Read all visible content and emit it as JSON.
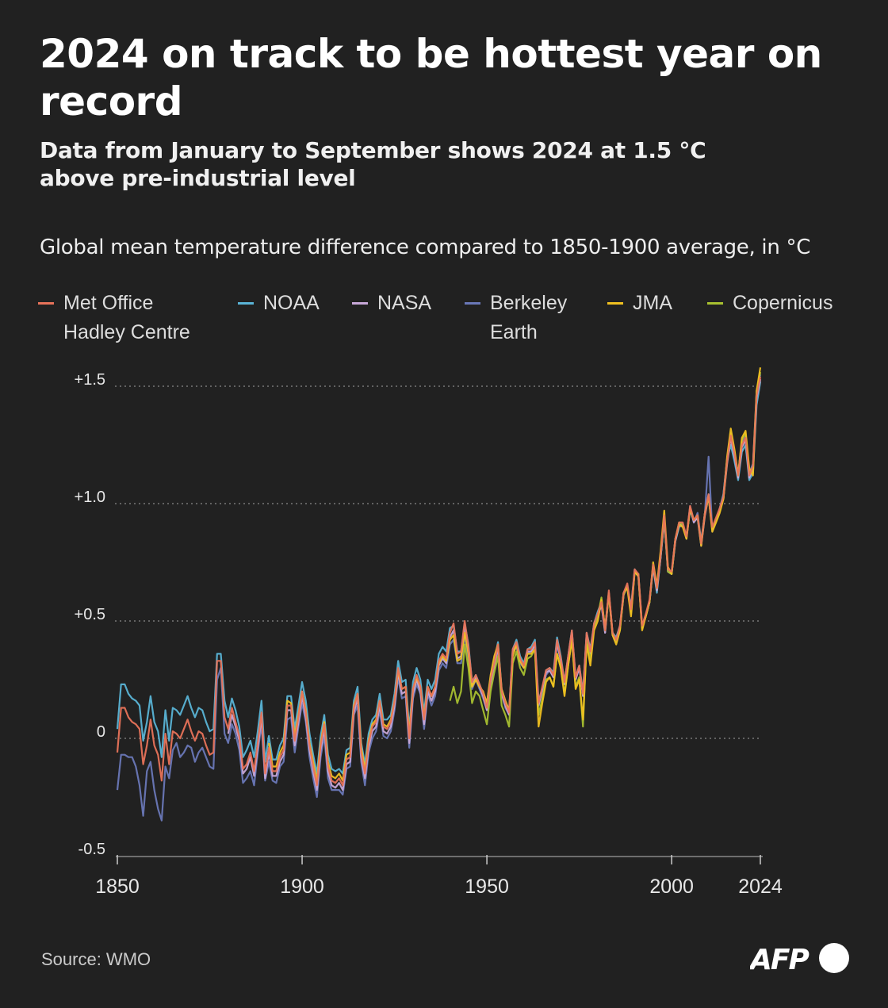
{
  "header": {
    "title": "2024 on track to be hottest year on record",
    "subtitle": "Data from January to September shows 2024 at 1.5 °C above pre-industrial level"
  },
  "footer": {
    "source": "Source: WMO",
    "logo": "AFP"
  },
  "chart_data": {
    "type": "line",
    "title": "2024 on track to be hottest year on record",
    "subtitle": "Data from January to September shows 2024 at 1.5 °C above pre-industrial level",
    "ylabel": "Global mean temperature difference compared to 1850-1900 average, in °C",
    "xlabel": "",
    "xlim": [
      1850,
      2024
    ],
    "ylim": [
      -0.5,
      1.5
    ],
    "x_ticks": [
      "1850",
      "1900",
      "1950",
      "2000",
      "2024"
    ],
    "y_ticks": [
      "-0.5",
      "0",
      "+0.5",
      "+1.0",
      "+1.5"
    ],
    "grid": "horizontal dotted",
    "legend_placement": "top",
    "background": "#212121",
    "series": [
      {
        "name": "Met Office\nHadley Centre",
        "color": "#e8735a",
        "start_year": 1850,
        "values": [
          -0.06,
          0.13,
          0.13,
          0.09,
          0.07,
          0.06,
          0.04,
          -0.11,
          -0.03,
          0.08,
          -0.03,
          -0.07,
          -0.18,
          0.02,
          -0.11,
          0.03,
          0.02,
          0.0,
          0.04,
          0.08,
          0.03,
          -0.01,
          0.03,
          0.02,
          -0.03,
          -0.07,
          -0.06,
          0.33,
          0.33,
          0.09,
          0.04,
          0.13,
          0.07,
          0.01,
          -0.13,
          -0.11,
          -0.06,
          -0.14,
          -0.02,
          0.11,
          -0.15,
          -0.04,
          -0.14,
          -0.14,
          -0.08,
          -0.05,
          0.14,
          0.14,
          -0.01,
          0.09,
          0.2,
          0.11,
          -0.03,
          -0.12,
          -0.2,
          -0.03,
          0.06,
          -0.12,
          -0.18,
          -0.19,
          -0.17,
          -0.2,
          -0.09,
          -0.08,
          0.13,
          0.19,
          -0.06,
          -0.15,
          -0.02,
          0.05,
          0.07,
          0.16,
          0.05,
          0.04,
          0.07,
          0.16,
          0.3,
          0.21,
          0.22,
          0.0,
          0.21,
          0.27,
          0.22,
          0.08,
          0.22,
          0.18,
          0.22,
          0.33,
          0.36,
          0.34,
          0.45,
          0.49,
          0.36,
          0.37,
          0.5,
          0.39,
          0.24,
          0.27,
          0.23,
          0.19,
          0.13,
          0.25,
          0.32,
          0.4,
          0.2,
          0.15,
          0.11,
          0.38,
          0.41,
          0.34,
          0.31,
          0.38,
          0.38,
          0.41,
          0.15,
          0.22,
          0.29,
          0.3,
          0.27,
          0.42,
          0.34,
          0.24,
          0.35,
          0.46,
          0.26,
          0.31,
          0.19,
          0.45,
          0.37,
          0.49,
          0.53,
          0.58,
          0.46,
          0.63,
          0.45,
          0.42,
          0.48,
          0.62,
          0.66,
          0.55,
          0.72,
          0.7,
          0.48,
          0.53,
          0.59,
          0.74,
          0.64,
          0.78,
          0.95,
          0.72,
          0.71,
          0.85,
          0.92,
          0.92,
          0.86,
          0.99,
          0.93,
          0.95,
          0.83,
          0.96,
          1.04,
          0.9,
          0.94,
          0.98,
          1.03,
          1.18,
          1.29,
          1.21,
          1.12,
          1.25,
          1.28,
          1.12,
          1.16,
          1.46,
          1.54
        ]
      },
      {
        "name": "NOAA",
        "color": "#5ab4d6",
        "start_year": 1850,
        "values": [
          0.04,
          0.23,
          0.23,
          0.19,
          0.17,
          0.16,
          0.14,
          -0.01,
          0.07,
          0.18,
          0.07,
          0.03,
          -0.08,
          0.12,
          -0.01,
          0.13,
          0.12,
          0.1,
          0.14,
          0.18,
          0.13,
          0.09,
          0.13,
          0.12,
          0.07,
          0.03,
          0.04,
          0.36,
          0.36,
          0.16,
          0.09,
          0.17,
          0.12,
          0.05,
          -0.08,
          -0.05,
          -0.01,
          -0.08,
          0.03,
          0.16,
          -0.1,
          0.01,
          -0.09,
          -0.09,
          -0.03,
          0.0,
          0.18,
          0.18,
          0.04,
          0.14,
          0.24,
          0.16,
          0.02,
          -0.07,
          -0.15,
          0.01,
          0.1,
          -0.07,
          -0.13,
          -0.14,
          -0.13,
          -0.15,
          -0.05,
          -0.04,
          0.16,
          0.22,
          -0.02,
          -0.11,
          0.02,
          0.08,
          0.1,
          0.19,
          0.08,
          0.08,
          0.1,
          0.19,
          0.33,
          0.24,
          0.25,
          0.04,
          0.24,
          0.3,
          0.25,
          0.11,
          0.25,
          0.21,
          0.25,
          0.36,
          0.39,
          0.37,
          0.47,
          0.48,
          0.37,
          0.37,
          0.49,
          0.4,
          0.24,
          0.27,
          0.23,
          0.19,
          0.15,
          0.26,
          0.33,
          0.41,
          0.21,
          0.16,
          0.12,
          0.38,
          0.42,
          0.35,
          0.32,
          0.38,
          0.39,
          0.42,
          0.16,
          0.21,
          0.29,
          0.3,
          0.28,
          0.43,
          0.35,
          0.24,
          0.35,
          0.46,
          0.26,
          0.31,
          0.2,
          0.45,
          0.38,
          0.49,
          0.54,
          0.58,
          0.47,
          0.62,
          0.45,
          0.43,
          0.48,
          0.62,
          0.65,
          0.56,
          0.72,
          0.69,
          0.47,
          0.52,
          0.58,
          0.73,
          0.62,
          0.77,
          0.93,
          0.71,
          0.7,
          0.84,
          0.9,
          0.91,
          0.86,
          0.97,
          0.93,
          0.94,
          0.84,
          0.96,
          1.04,
          0.89,
          0.93,
          0.97,
          1.04,
          1.19,
          1.25,
          1.18,
          1.1,
          1.22,
          1.25,
          1.1,
          1.13,
          1.42,
          1.52
        ]
      },
      {
        "name": "NASA",
        "color": "#c8a8d8",
        "start_year": 1880,
        "values": [
          0.02,
          0.1,
          0.05,
          -0.01,
          -0.15,
          -0.13,
          -0.08,
          -0.16,
          -0.04,
          0.09,
          -0.17,
          -0.06,
          -0.16,
          -0.16,
          -0.1,
          -0.07,
          0.12,
          0.12,
          -0.03,
          0.07,
          0.18,
          0.09,
          -0.05,
          -0.14,
          -0.22,
          -0.05,
          0.04,
          -0.14,
          -0.2,
          -0.21,
          -0.19,
          -0.22,
          -0.11,
          -0.1,
          0.11,
          0.17,
          -0.08,
          -0.17,
          -0.04,
          0.03,
          0.05,
          0.14,
          0.03,
          0.02,
          0.05,
          0.14,
          0.28,
          0.19,
          0.2,
          -0.02,
          0.19,
          0.25,
          0.2,
          0.06,
          0.2,
          0.16,
          0.2,
          0.31,
          0.34,
          0.32,
          0.43,
          0.46,
          0.34,
          0.35,
          0.47,
          0.37,
          0.22,
          0.26,
          0.22,
          0.18,
          0.12,
          0.24,
          0.31,
          0.39,
          0.19,
          0.14,
          0.1,
          0.37,
          0.4,
          0.33,
          0.3,
          0.37,
          0.37,
          0.4,
          0.14,
          0.21,
          0.28,
          0.29,
          0.26,
          0.41,
          0.33,
          0.23,
          0.34,
          0.45,
          0.25,
          0.3,
          0.18,
          0.44,
          0.36,
          0.48,
          0.52,
          0.57,
          0.45,
          0.62,
          0.44,
          0.41,
          0.47,
          0.61,
          0.65,
          0.54,
          0.71,
          0.69,
          0.47,
          0.52,
          0.58,
          0.73,
          0.63,
          0.77,
          0.94,
          0.71,
          0.7,
          0.84,
          0.91,
          0.91,
          0.85,
          0.98,
          0.92,
          0.94,
          0.82,
          0.95,
          1.03,
          0.89,
          0.93,
          0.97,
          1.02,
          1.17,
          1.28,
          1.2,
          1.11,
          1.24,
          1.27,
          1.11,
          1.15,
          1.45,
          1.53
        ]
      },
      {
        "name": "Berkeley\nEarth",
        "color": "#6a78b8",
        "start_year": 1850,
        "values": [
          -0.22,
          -0.07,
          -0.07,
          -0.08,
          -0.08,
          -0.12,
          -0.2,
          -0.33,
          -0.14,
          -0.1,
          -0.22,
          -0.3,
          -0.35,
          -0.12,
          -0.17,
          -0.05,
          -0.02,
          -0.08,
          -0.06,
          -0.03,
          -0.04,
          -0.1,
          -0.06,
          -0.04,
          -0.08,
          -0.12,
          -0.13,
          0.25,
          0.3,
          0.02,
          -0.02,
          0.06,
          0.02,
          -0.05,
          -0.19,
          -0.17,
          -0.14,
          -0.2,
          -0.06,
          0.06,
          -0.18,
          -0.1,
          -0.18,
          -0.19,
          -0.12,
          -0.1,
          0.08,
          0.09,
          -0.06,
          0.05,
          0.15,
          0.07,
          -0.08,
          -0.17,
          -0.25,
          -0.08,
          0.01,
          -0.17,
          -0.22,
          -0.22,
          -0.22,
          -0.24,
          -0.13,
          -0.12,
          0.1,
          0.14,
          -0.1,
          -0.2,
          -0.06,
          0.0,
          0.03,
          0.12,
          0.01,
          0.0,
          0.03,
          0.12,
          0.26,
          0.17,
          0.18,
          -0.04,
          0.17,
          0.23,
          0.19,
          0.04,
          0.19,
          0.14,
          0.18,
          0.29,
          0.32,
          0.3,
          0.4,
          0.42,
          0.32,
          0.32,
          0.44,
          0.33,
          0.21,
          0.25,
          0.21,
          0.17,
          0.12,
          0.23,
          0.3,
          0.38,
          0.19,
          0.13,
          0.1,
          0.36,
          0.39,
          0.32,
          0.3,
          0.36,
          0.37,
          0.39,
          0.14,
          0.2,
          0.27,
          0.29,
          0.26,
          0.4,
          0.33,
          0.23,
          0.34,
          0.45,
          0.25,
          0.3,
          0.19,
          0.44,
          0.36,
          0.48,
          0.52,
          0.57,
          0.45,
          0.62,
          0.45,
          0.42,
          0.47,
          0.61,
          0.65,
          0.55,
          0.71,
          0.7,
          0.48,
          0.52,
          0.58,
          0.74,
          0.63,
          0.77,
          0.93,
          0.72,
          0.71,
          0.85,
          0.91,
          0.91,
          0.86,
          0.99,
          0.92,
          0.96,
          0.84,
          0.96,
          1.2,
          0.88,
          0.93,
          0.98,
          1.04,
          1.19,
          1.3,
          1.21,
          1.13,
          1.26,
          1.29,
          1.13,
          1.17,
          1.48,
          1.55
        ]
      },
      {
        "name": "JMA",
        "color": "#f0c020",
        "start_year": 1891,
        "values": [
          -0.02,
          -0.12,
          -0.12,
          -0.06,
          -0.03,
          0.16,
          0.15,
          0.01,
          0.1,
          0.2,
          0.12,
          -0.02,
          -0.1,
          -0.18,
          -0.02,
          0.07,
          -0.1,
          -0.16,
          -0.17,
          -0.15,
          -0.18,
          -0.07,
          -0.06,
          0.14,
          0.19,
          -0.04,
          -0.13,
          -0.01,
          0.06,
          0.08,
          0.16,
          0.06,
          0.05,
          0.08,
          0.16,
          0.29,
          0.21,
          0.22,
          0.02,
          0.21,
          0.26,
          0.22,
          0.09,
          0.22,
          0.18,
          0.22,
          0.32,
          0.35,
          0.33,
          0.42,
          0.44,
          0.33,
          0.34,
          0.45,
          0.36,
          0.22,
          0.25,
          0.22,
          0.2,
          0.15,
          0.27,
          0.35,
          0.4,
          0.21,
          0.16,
          0.12,
          0.35,
          0.4,
          0.33,
          0.3,
          0.36,
          0.36,
          0.38,
          0.05,
          0.15,
          0.24,
          0.26,
          0.22,
          0.36,
          0.3,
          0.18,
          0.31,
          0.42,
          0.21,
          0.25,
          0.08,
          0.4,
          0.31,
          0.46,
          0.5,
          0.59,
          0.47,
          0.62,
          0.44,
          0.4,
          0.46,
          0.62,
          0.64,
          0.52,
          0.71,
          0.69,
          0.46,
          0.52,
          0.58,
          0.75,
          0.65,
          0.8,
          0.97,
          0.73,
          0.7,
          0.85,
          0.91,
          0.9,
          0.85,
          0.98,
          0.93,
          0.95,
          0.82,
          0.96,
          1.03,
          0.88,
          0.92,
          0.96,
          1.02,
          1.2,
          1.32,
          1.23,
          1.12,
          1.28,
          1.31,
          1.15,
          1.12,
          1.48,
          1.58
        ]
      },
      {
        "name": "Copernicus",
        "color": "#a8c030",
        "start_year": 1940,
        "values": [
          0.16,
          0.22,
          0.15,
          0.2,
          0.4,
          0.3,
          0.15,
          0.2,
          0.18,
          0.12,
          0.06,
          0.2,
          0.28,
          0.35,
          0.14,
          0.1,
          0.05,
          0.32,
          0.37,
          0.3,
          0.27,
          0.34,
          0.35,
          0.38,
          0.1,
          0.17,
          0.25,
          0.26,
          0.22,
          0.36,
          0.3,
          0.19,
          0.31,
          0.42,
          0.22,
          0.26,
          0.05,
          0.42,
          0.33,
          0.48,
          0.52,
          0.6,
          0.46,
          0.61,
          0.45,
          0.41,
          0.46,
          0.61,
          0.65,
          0.53,
          0.71,
          0.7,
          0.47,
          0.52,
          0.58,
          0.74,
          0.64,
          0.78,
          0.94,
          0.71,
          0.7,
          0.85,
          0.92,
          0.91,
          0.86,
          0.98,
          0.93,
          0.95,
          0.83,
          0.96,
          1.03,
          0.89,
          0.93,
          0.97,
          1.02,
          1.18,
          1.3,
          1.22,
          1.12,
          1.27,
          1.3,
          1.13,
          1.16,
          1.48,
          1.56
        ]
      }
    ]
  }
}
